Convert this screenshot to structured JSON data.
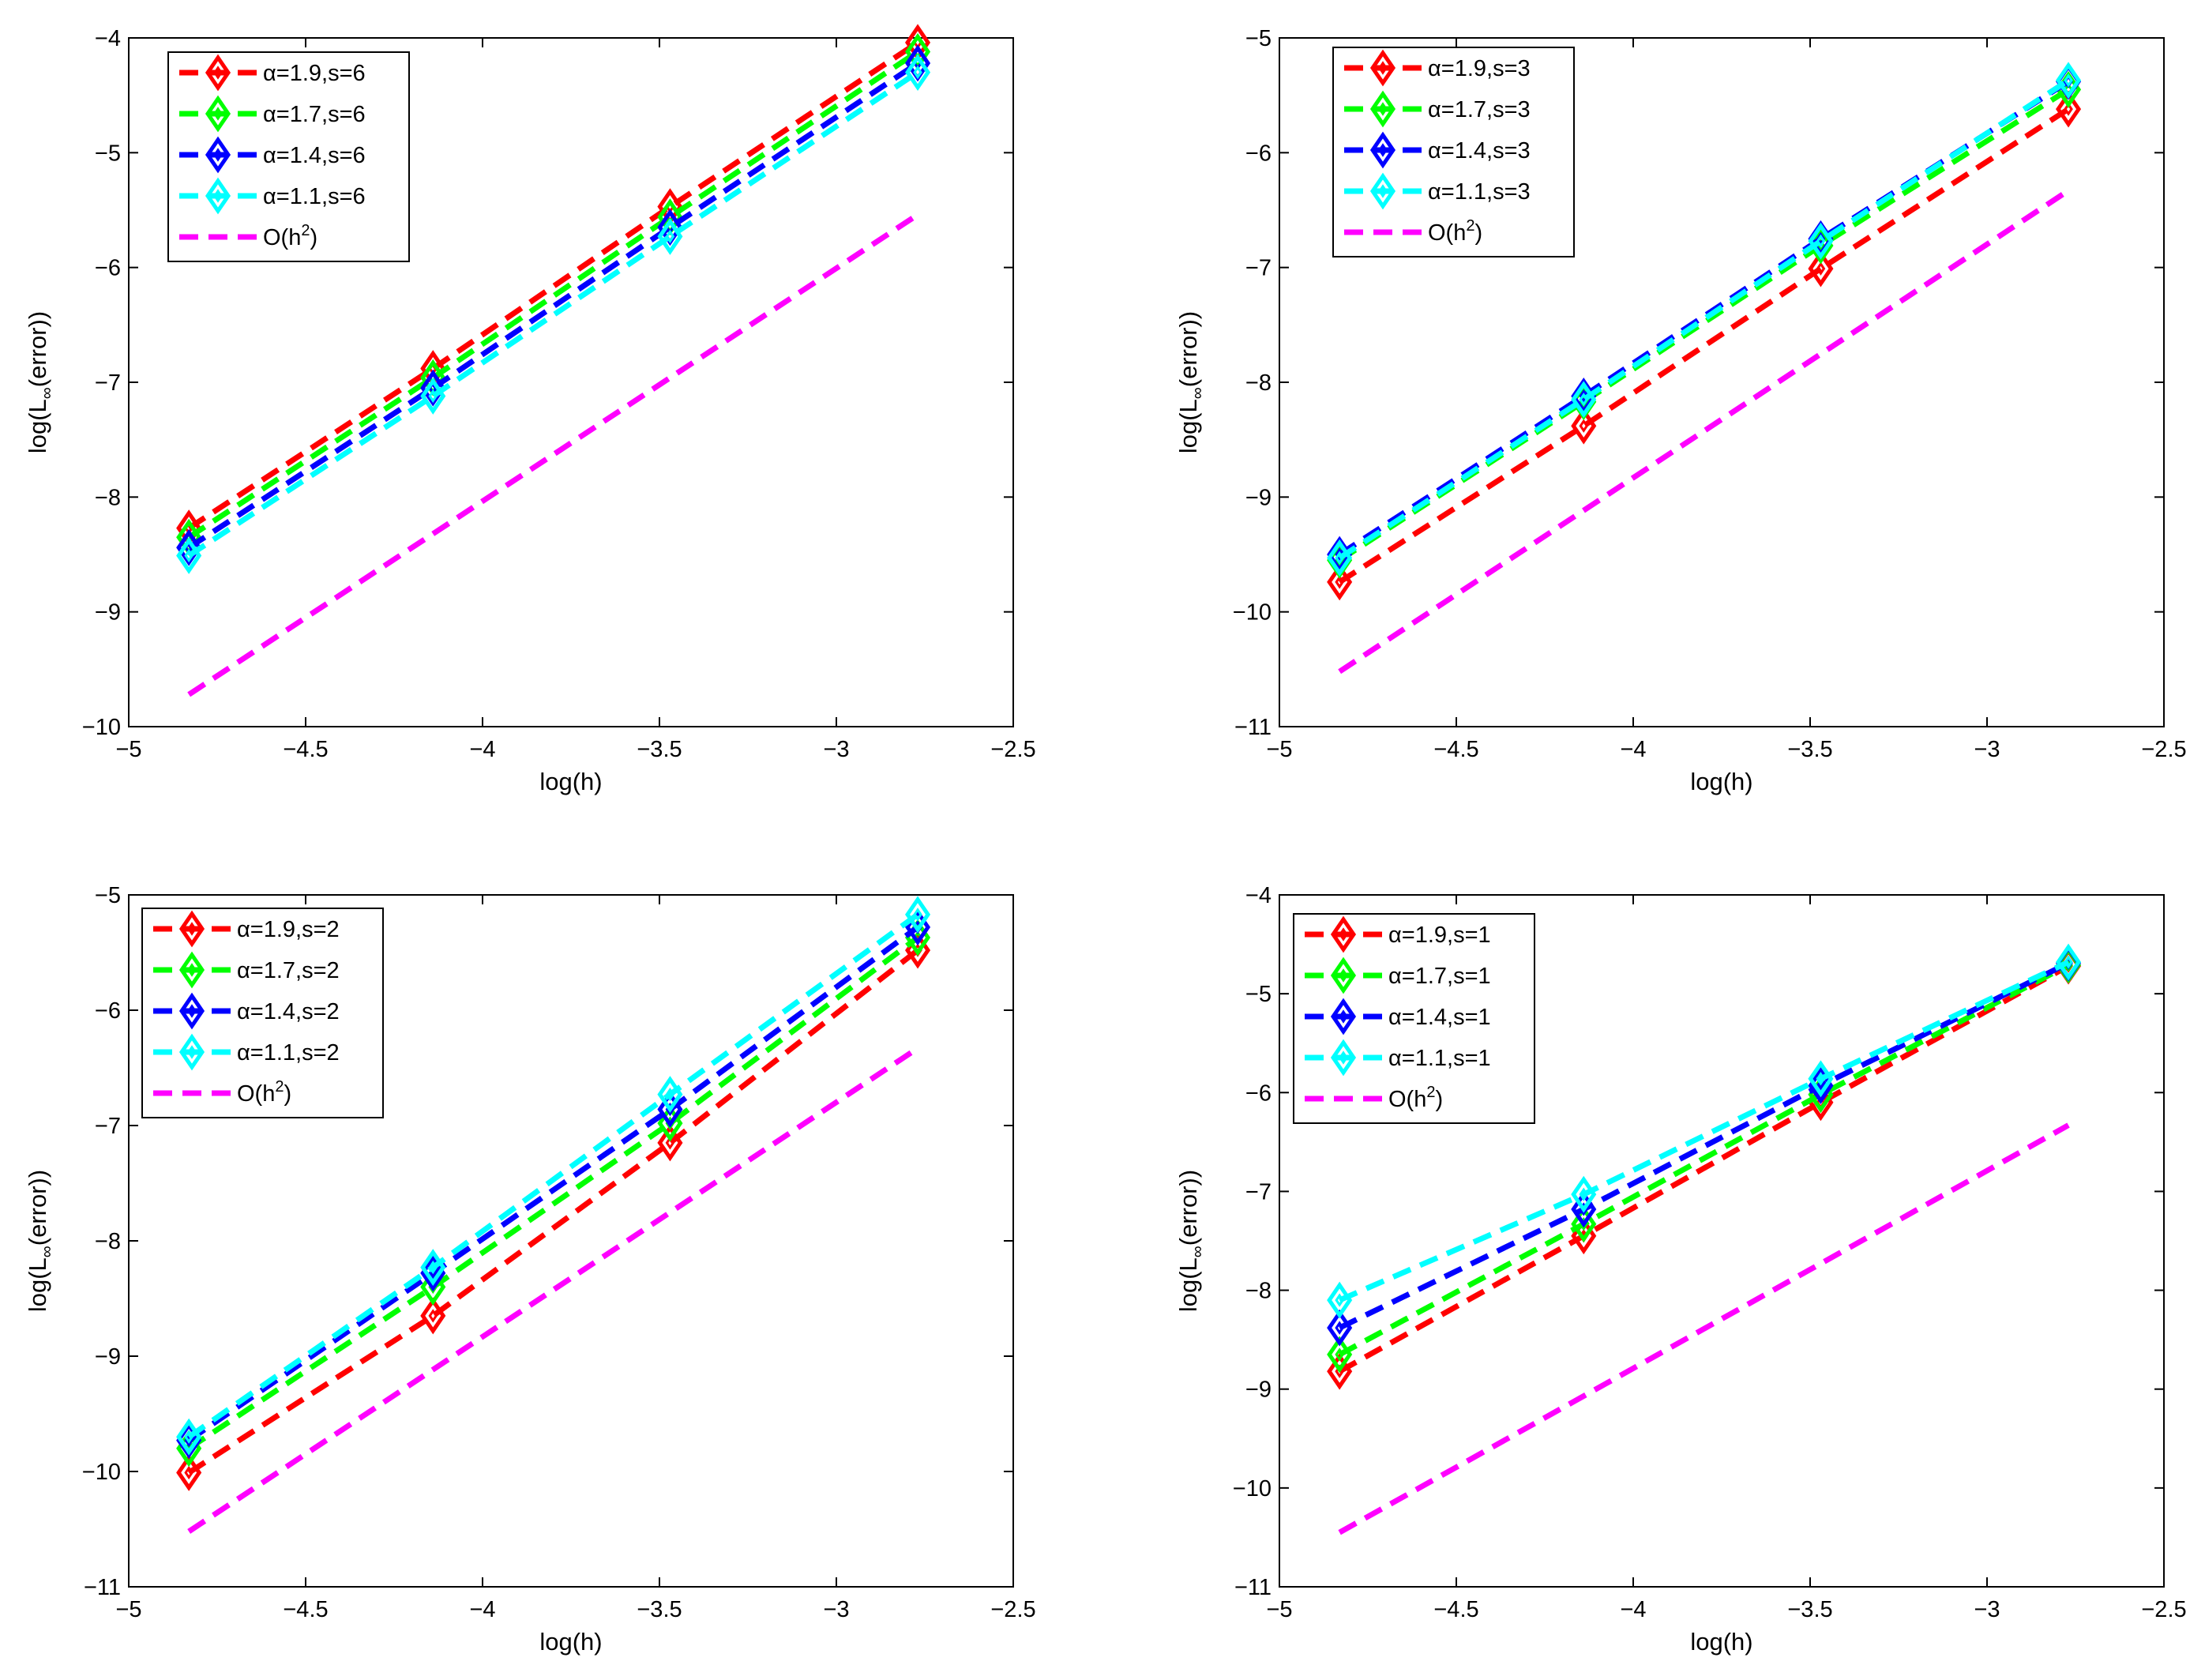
{
  "chart_data": [
    {
      "type": "line",
      "xlabel": "log(h)",
      "ylabel": "log(L∞(error))",
      "ylabel_main": "log(L",
      "ylabel_sub": "∞",
      "ylabel_tail": "(error))",
      "xlim": [
        -5,
        -2.5
      ],
      "ylim": [
        -10,
        -4
      ],
      "xticks": [
        -5,
        -4.5,
        -4,
        -3.5,
        -3,
        -2.5
      ],
      "xtick_labels": [
        "−5",
        "−4.5",
        "−4",
        "−3.5",
        "−3",
        "−2.5"
      ],
      "yticks": [
        -10,
        -9,
        -8,
        -7,
        -6,
        -5,
        -4
      ],
      "ytick_labels": [
        "−10",
        "−9",
        "−8",
        "−7",
        "−6",
        "−5",
        "−4"
      ],
      "legend_position": "top-left",
      "x": [
        -4.83,
        -4.14,
        -3.47,
        -2.77
      ],
      "series": [
        {
          "name": "α=1.9,s=6",
          "color": "#ff0000",
          "marker": "diamond",
          "values": [
            -8.27,
            -6.88,
            -5.47,
            -4.04
          ]
        },
        {
          "name": "α=1.7,s=6",
          "color": "#00ff00",
          "marker": "diamond",
          "values": [
            -8.35,
            -6.96,
            -5.56,
            -4.12
          ]
        },
        {
          "name": "α=1.4,s=6",
          "color": "#0000ff",
          "marker": "diamond",
          "values": [
            -8.44,
            -7.05,
            -5.65,
            -4.22
          ]
        },
        {
          "name": "α=1.1,s=6",
          "color": "#00ffff",
          "marker": "diamond",
          "values": [
            -8.51,
            -7.12,
            -5.73,
            -4.3
          ]
        },
        {
          "name": "O(h²)",
          "label_main": "O(h",
          "label_sup": "2",
          "label_tail": ")",
          "color": "#ff00ff",
          "marker": "none",
          "x": [
            -4.83,
            -2.77
          ],
          "values": [
            -9.72,
            -5.54
          ]
        }
      ]
    },
    {
      "type": "line",
      "xlabel": "log(h)",
      "ylabel": "log(L∞(error))",
      "ylabel_main": "log(L",
      "ylabel_sub": "∞",
      "ylabel_tail": "(error))",
      "xlim": [
        -5,
        -2.5
      ],
      "ylim": [
        -11,
        -5
      ],
      "xticks": [
        -5,
        -4.5,
        -4,
        -3.5,
        -3,
        -2.5
      ],
      "xtick_labels": [
        "−5",
        "−4.5",
        "−4",
        "−3.5",
        "−3",
        "−2.5"
      ],
      "yticks": [
        -11,
        -10,
        -9,
        -8,
        -7,
        -6,
        -5
      ],
      "ytick_labels": [
        "−11",
        "−10",
        "−9",
        "−8",
        "−7",
        "−6",
        "−5"
      ],
      "legend_position": "top-left",
      "x": [
        -4.83,
        -4.14,
        -3.47,
        -2.77
      ],
      "series": [
        {
          "name": "α=1.9,s=3",
          "color": "#ff0000",
          "marker": "diamond",
          "values": [
            -9.74,
            -8.38,
            -7.01,
            -5.62
          ]
        },
        {
          "name": "α=1.7,s=3",
          "color": "#00ff00",
          "marker": "diamond",
          "values": [
            -9.55,
            -8.17,
            -6.81,
            -5.45
          ]
        },
        {
          "name": "α=1.4,s=3",
          "color": "#0000ff",
          "marker": "diamond",
          "values": [
            -9.5,
            -8.12,
            -6.75,
            -5.38
          ]
        },
        {
          "name": "α=1.1,s=3",
          "color": "#00ffff",
          "marker": "diamond",
          "values": [
            -9.53,
            -8.15,
            -6.77,
            -5.37
          ]
        },
        {
          "name": "O(h²)",
          "label_main": "O(h",
          "label_sup": "2",
          "label_tail": ")",
          "color": "#ff00ff",
          "marker": "none",
          "x": [
            -4.83,
            -2.77
          ],
          "values": [
            -10.52,
            -6.33
          ]
        }
      ]
    },
    {
      "type": "line",
      "xlabel": "log(h)",
      "ylabel": "log(L∞(error))",
      "ylabel_main": "log(L",
      "ylabel_sub": "∞",
      "ylabel_tail": "(error))",
      "xlim": [
        -5,
        -2.5
      ],
      "ylim": [
        -11,
        -5
      ],
      "xticks": [
        -5,
        -4.5,
        -4,
        -3.5,
        -3,
        -2.5
      ],
      "xtick_labels": [
        "−5",
        "−4.5",
        "−4",
        "−3.5",
        "−3",
        "−2.5"
      ],
      "yticks": [
        -11,
        -10,
        -9,
        -8,
        -7,
        -6,
        -5
      ],
      "ytick_labels": [
        "−11",
        "−10",
        "−9",
        "−8",
        "−7",
        "−6",
        "−5"
      ],
      "legend_position": "top-left",
      "x": [
        -4.83,
        -4.14,
        -3.47,
        -2.77
      ],
      "series": [
        {
          "name": "α=1.9,s=2",
          "color": "#ff0000",
          "marker": "diamond",
          "values": [
            -10.01,
            -8.65,
            -7.15,
            -5.48
          ]
        },
        {
          "name": "α=1.7,s=2",
          "color": "#00ff00",
          "marker": "diamond",
          "values": [
            -9.8,
            -8.4,
            -6.98,
            -5.37
          ]
        },
        {
          "name": "α=1.4,s=2",
          "color": "#0000ff",
          "marker": "diamond",
          "values": [
            -9.73,
            -8.28,
            -6.86,
            -5.28
          ]
        },
        {
          "name": "α=1.1,s=2",
          "color": "#00ffff",
          "marker": "diamond",
          "values": [
            -9.7,
            -8.23,
            -6.73,
            -5.17
          ]
        },
        {
          "name": "O(h²)",
          "label_main": "O(h",
          "label_sup": "2",
          "label_tail": ")",
          "color": "#ff00ff",
          "marker": "none",
          "x": [
            -4.83,
            -2.77
          ],
          "values": [
            -10.52,
            -6.33
          ]
        }
      ]
    },
    {
      "type": "line",
      "xlabel": "log(h)",
      "ylabel": "log(L∞(error))",
      "ylabel_main": "log(L",
      "ylabel_sub": "∞",
      "ylabel_tail": "(error))",
      "xlim": [
        -5,
        -2.5
      ],
      "ylim": [
        -11,
        -4
      ],
      "xticks": [
        -5,
        -4.5,
        -4,
        -3.5,
        -3,
        -2.5
      ],
      "xtick_labels": [
        "−5",
        "−4.5",
        "−4",
        "−3.5",
        "−3",
        "−2.5"
      ],
      "yticks": [
        -11,
        -10,
        -9,
        -8,
        -7,
        -6,
        -5,
        -4
      ],
      "ytick_labels": [
        "−11",
        "−10",
        "−9",
        "−8",
        "−7",
        "−6",
        "−5",
        "−4"
      ],
      "legend_position": "top-left",
      "x": [
        -4.83,
        -4.14,
        -3.47,
        -2.77
      ],
      "series": [
        {
          "name": "α=1.9,s=1",
          "color": "#ff0000",
          "marker": "diamond",
          "values": [
            -8.82,
            -7.45,
            -6.1,
            -4.72
          ]
        },
        {
          "name": "α=1.7,s=1",
          "color": "#00ff00",
          "marker": "diamond",
          "values": [
            -8.65,
            -7.33,
            -6.02,
            -4.71
          ]
        },
        {
          "name": "α=1.4,s=1",
          "color": "#0000ff",
          "marker": "diamond",
          "values": [
            -8.38,
            -7.18,
            -5.93,
            -4.69
          ]
        },
        {
          "name": "α=1.1,s=1",
          "color": "#00ffff",
          "marker": "diamond",
          "values": [
            -8.1,
            -7.03,
            -5.86,
            -4.68
          ]
        },
        {
          "name": "O(h²)",
          "label_main": "O(h",
          "label_sup": "2",
          "label_tail": ")",
          "color": "#ff00ff",
          "marker": "none",
          "x": [
            -4.83,
            -2.77
          ],
          "values": [
            -10.45,
            -6.33
          ]
        }
      ]
    }
  ]
}
